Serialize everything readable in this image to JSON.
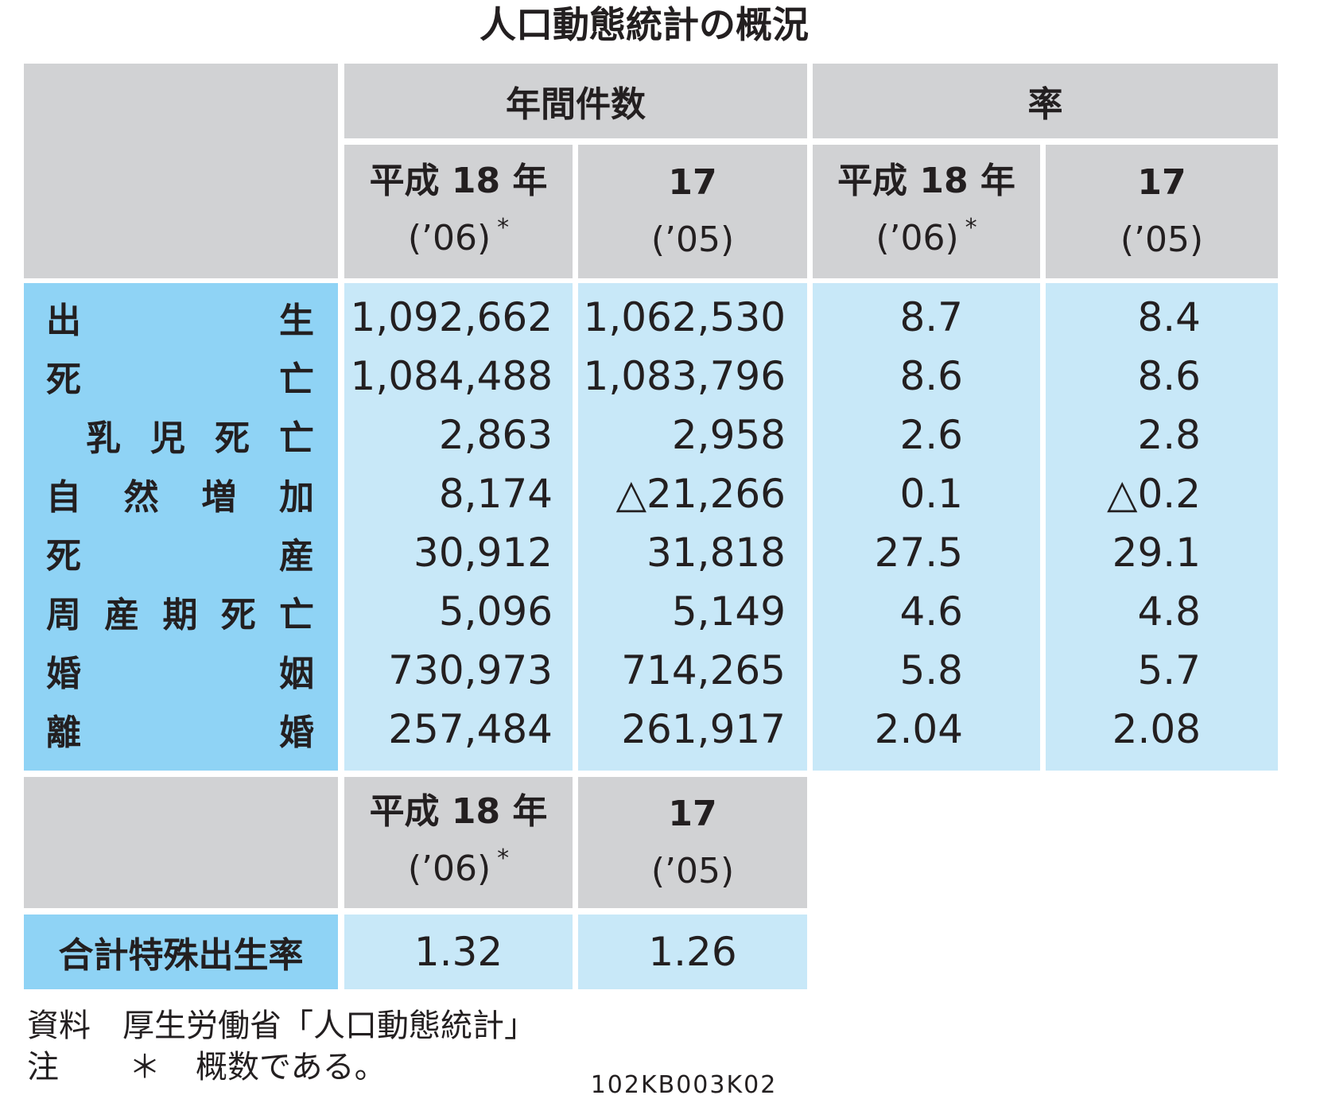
{
  "title": "人口動態統計の概況",
  "groups": {
    "counts": "年間件数",
    "rates": "率"
  },
  "year_headers": {
    "h18": {
      "line1": "平成 18 年",
      "line2": "(’06)",
      "mark": "*"
    },
    "h17": {
      "line1": "17",
      "line2": "(’05)"
    }
  },
  "rows": [
    {
      "label": [
        "出",
        "生"
      ],
      "c18": "1,092,662",
      "c17": "1,062,530",
      "r18": "8.7",
      "r17": "8.4"
    },
    {
      "label": [
        "死",
        "亡"
      ],
      "c18": "1,084,488",
      "c17": "1,083,796",
      "r18": "8.6",
      "r17": "8.6"
    },
    {
      "label": [
        "乳",
        "児",
        "死",
        "亡"
      ],
      "c18": "2,863",
      "c17": "2,958",
      "r18": "2.6",
      "r17": "2.8"
    },
    {
      "label": [
        "自",
        "然",
        "増",
        "加"
      ],
      "c18": "8,174",
      "c17": "△21,266",
      "r18": "0.1",
      "r17": "△0.2"
    },
    {
      "label": [
        "死",
        "産"
      ],
      "c18": "30,912",
      "c17": "31,818",
      "r18": "27.5",
      "r17": "29.1"
    },
    {
      "label": [
        "周",
        "産",
        "期",
        "死",
        "亡"
      ],
      "c18": "5,096",
      "c17": "5,149",
      "r18": "4.6",
      "r17": "4.8"
    },
    {
      "label": [
        "婚",
        "姻"
      ],
      "c18": "730,973",
      "c17": "714,265",
      "r18": "5.8",
      "r17": "5.7"
    },
    {
      "label": [
        "離",
        "婚"
      ],
      "c18": "257,484",
      "c17": "261,917",
      "r18": "2.04",
      "r17": "2.08"
    }
  ],
  "tfr": {
    "label": "合計特殊出生率",
    "v18": "1.32",
    "v17": "1.26"
  },
  "notes": {
    "source_label": "資料",
    "source_text": "厚生労働省「人口動態統計」",
    "note_label": "注",
    "note_mark": "＊",
    "note_text": "概数である。"
  },
  "code": "102KB003K02"
}
